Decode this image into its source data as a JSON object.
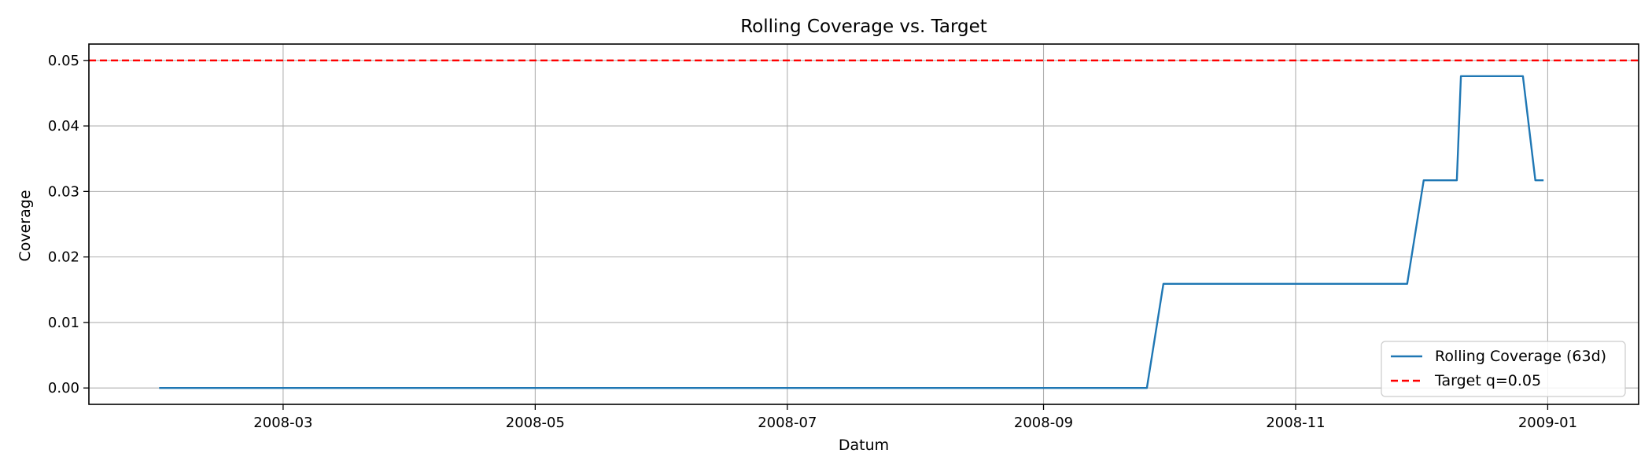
{
  "chart_data": {
    "type": "line",
    "title": "Rolling Coverage vs. Target",
    "xlabel": "Datum",
    "ylabel": "Coverage",
    "xlim": [
      "2008-01-14",
      "2009-01-23"
    ],
    "ylim": [
      -0.0025,
      0.0525
    ],
    "x_ticks": [
      "2008-03-01",
      "2008-05-01",
      "2008-07-01",
      "2008-09-01",
      "2008-11-01",
      "2009-01-01"
    ],
    "x_tick_labels": [
      "2008-03",
      "2008-05",
      "2008-07",
      "2008-09",
      "2008-11",
      "2009-01"
    ],
    "y_ticks": [
      0.0,
      0.01,
      0.02,
      0.03,
      0.04,
      0.05
    ],
    "y_tick_labels": [
      "0.00",
      "0.01",
      "0.02",
      "0.03",
      "0.04",
      "0.05"
    ],
    "grid": true,
    "legend_position": "lower-right",
    "series": [
      {
        "name": "Rolling Coverage (63d)",
        "color": "#1f77b4",
        "style": "solid",
        "points": [
          [
            "2008-01-31",
            0.0
          ],
          [
            "2008-09-26",
            0.0
          ],
          [
            "2008-09-30",
            0.0159
          ],
          [
            "2008-11-28",
            0.0159
          ],
          [
            "2008-12-02",
            0.0317
          ],
          [
            "2008-12-10",
            0.0317
          ],
          [
            "2008-12-11",
            0.0476
          ],
          [
            "2008-12-26",
            0.0476
          ],
          [
            "2008-12-29",
            0.0317
          ],
          [
            "2008-12-31",
            0.0317
          ]
        ]
      },
      {
        "name": "Target q=0.05",
        "color": "#ff0000",
        "style": "dashed",
        "hline": 0.05
      }
    ]
  }
}
